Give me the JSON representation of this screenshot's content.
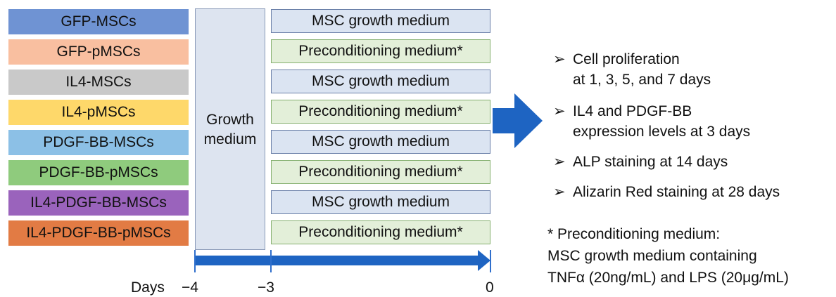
{
  "groups": [
    {
      "label": "GFP-MSCs",
      "color": "#6f93d3"
    },
    {
      "label": "GFP-pMSCs",
      "color": "#f9bfa0"
    },
    {
      "label": "IL4-MSCs",
      "color": "#c9c9c9"
    },
    {
      "label": "IL4-pMSCs",
      "color": "#fed86a"
    },
    {
      "label": "PDGF-BB-MSCs",
      "color": "#8cc0e6"
    },
    {
      "label": "PDGF-BB-pMSCs",
      "color": "#8fcb7d"
    },
    {
      "label": "IL4-PDGF-BB-MSCs",
      "color": "#9a63bc"
    },
    {
      "label": "IL4-PDGF-BB-pMSCs",
      "color": "#e27b44"
    }
  ],
  "growth_phase": {
    "label_line1": "Growth",
    "label_line2": "medium"
  },
  "media": [
    {
      "label": "MSC growth medium",
      "type": "msc"
    },
    {
      "label": "Preconditioning medium*",
      "type": "pre"
    },
    {
      "label": "MSC growth medium",
      "type": "msc"
    },
    {
      "label": "Preconditioning medium*",
      "type": "pre"
    },
    {
      "label": "MSC growth medium",
      "type": "msc"
    },
    {
      "label": "Preconditioning medium*",
      "type": "pre"
    },
    {
      "label": "MSC growth medium",
      "type": "msc"
    },
    {
      "label": "Preconditioning medium*",
      "type": "pre"
    }
  ],
  "timeline": {
    "axis_label": "Days",
    "ticks": [
      "−4",
      "−3",
      "0"
    ],
    "color": "#1e64c2"
  },
  "results": [
    {
      "bullet": "➢",
      "line1": "Cell proliferation",
      "line2": "at 1, 3, 5, and 7 days"
    },
    {
      "bullet": "➢",
      "line1": "IL4 and PDGF-BB",
      "line2": "expression levels at 3 days"
    },
    {
      "bullet": "➢",
      "line1": "ALP staining at 14 days"
    },
    {
      "bullet": "➢",
      "line1": "Alizarin Red staining at 28 days"
    }
  ],
  "note": {
    "line1": "* Preconditioning medium:",
    "line2": "MSC growth medium containing",
    "line3": "TNFα (20ng/mL) and LPS (20μg/mL)"
  }
}
